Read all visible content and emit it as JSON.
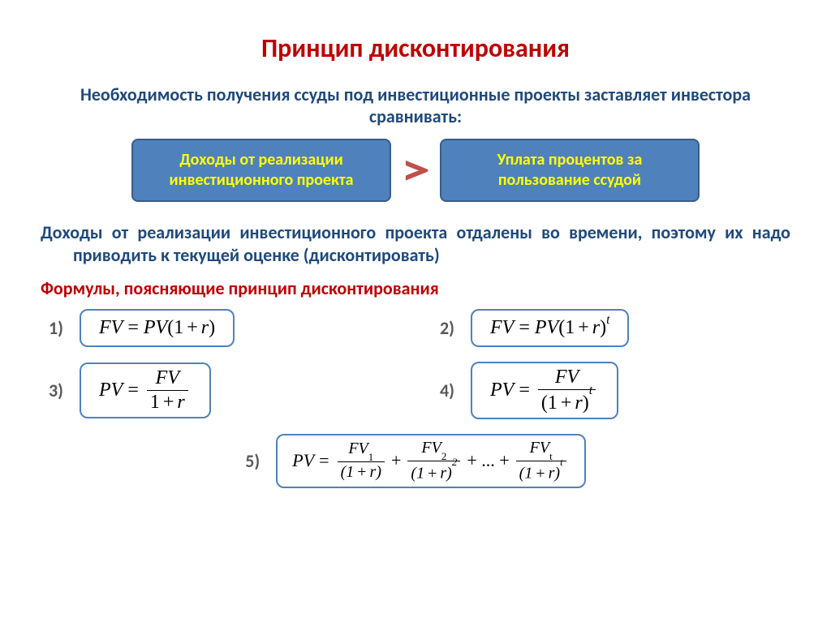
{
  "colors": {
    "title": "#c00000",
    "subtitle": "#1f497d",
    "box_fill": "#4f81bd",
    "box_border": "#385d8a",
    "box_text": "#ffff00",
    "gt_text": "#c0504d",
    "body_text": "#1f497d",
    "section_head": "#c00000",
    "formula_border": "#4f81bd",
    "formula_num": "#595959"
  },
  "title": "Принцип дисконтирования",
  "subtitle": "Необходимость получения ссуды под инвестиционные проекты заставляет инвестора сравнивать:",
  "box_left": "Доходы от реализации инвестиционного проекта",
  "box_right": "Уплата процентов за пользование ссудой",
  "gt": ">",
  "body_text": "Доходы от реализации инвестиционного проекта отдалены во времени, поэтому их надо приводить к текущей оценке (дисконтировать)",
  "section_head": "Формулы, поясняющие принцип дисконтирования",
  "labels": {
    "f1": "1)",
    "f2": "2)",
    "f3": "3)",
    "f4": "4)",
    "f5": "5)"
  }
}
